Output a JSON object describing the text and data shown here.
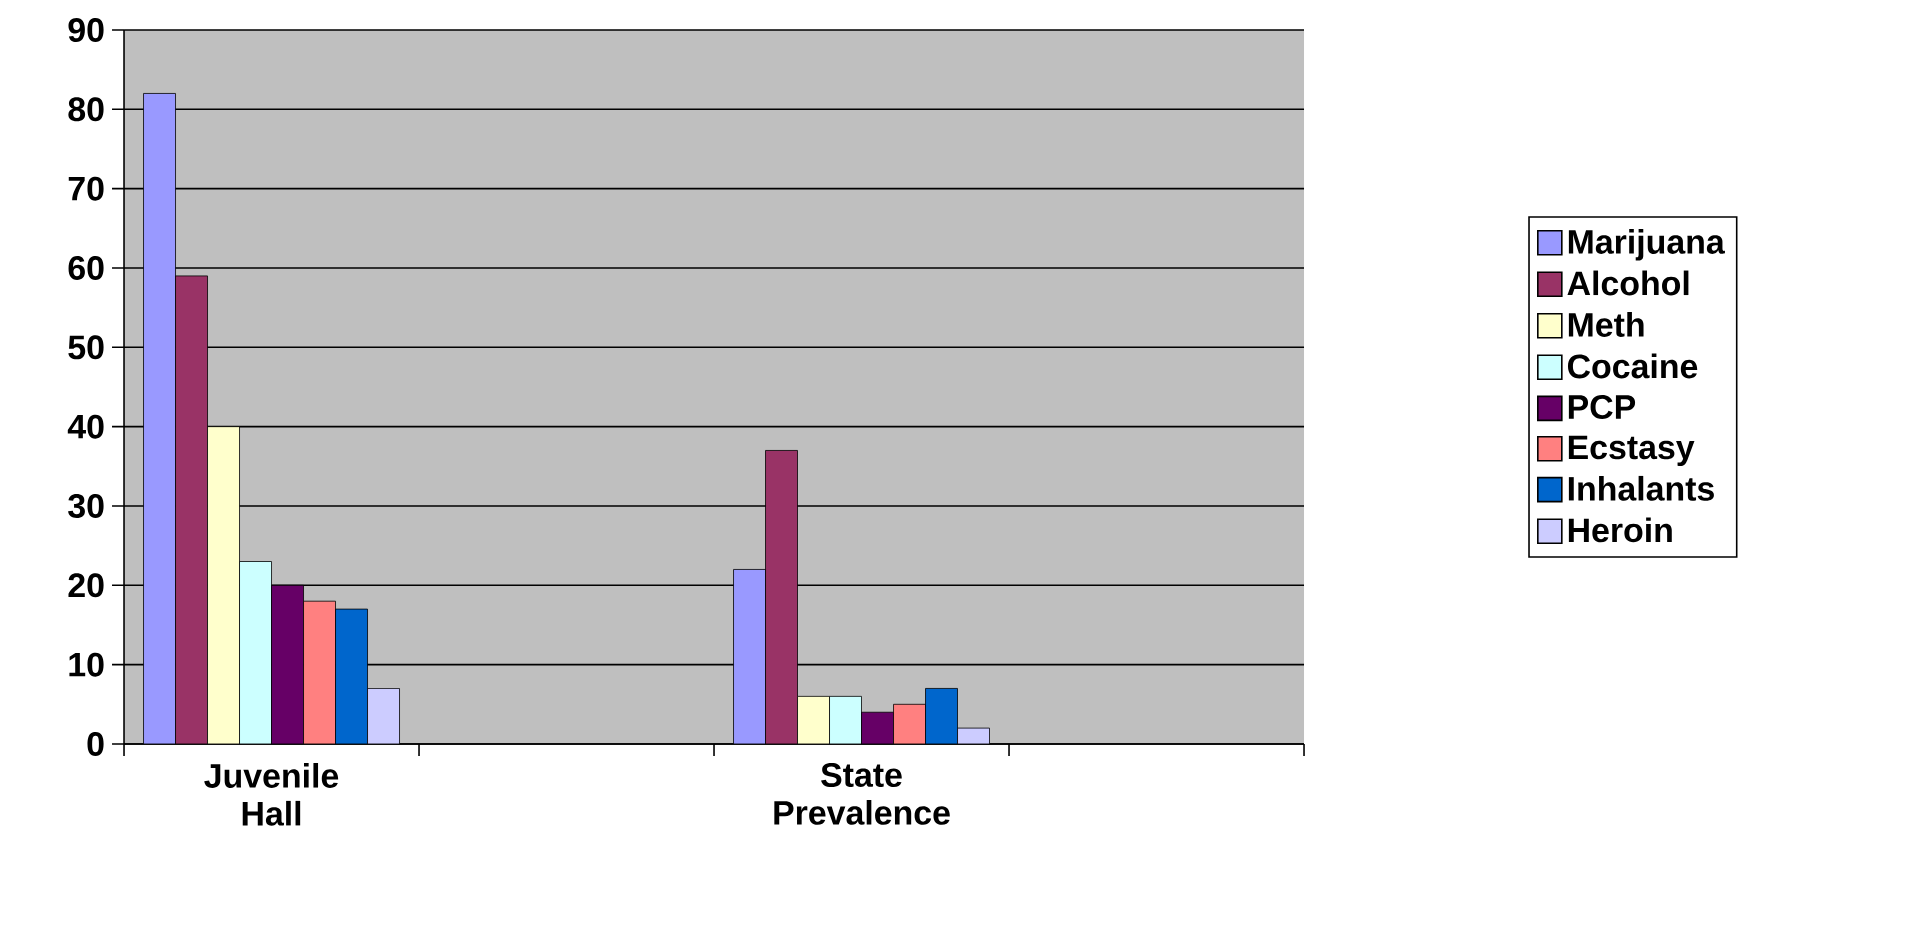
{
  "chart_data": {
    "type": "bar",
    "categories": [
      "Juvenile Hall",
      null,
      "State Prevalence",
      null
    ],
    "series": [
      {
        "name": "Marijuana",
        "color": "#9999ff",
        "values": [
          82,
          null,
          22,
          null
        ]
      },
      {
        "name": "Alcohol",
        "color": "#993366",
        "values": [
          59,
          null,
          37,
          null
        ]
      },
      {
        "name": "Meth",
        "color": "#ffffcc",
        "values": [
          40,
          null,
          6,
          null
        ]
      },
      {
        "name": "Cocaine",
        "color": "#ccffff",
        "values": [
          23,
          null,
          6,
          null
        ]
      },
      {
        "name": "PCP",
        "color": "#660066",
        "values": [
          20,
          null,
          4,
          null
        ]
      },
      {
        "name": "Ecstasy",
        "color": "#ff8080",
        "values": [
          18,
          null,
          5,
          null
        ]
      },
      {
        "name": "Inhalants",
        "color": "#0066cc",
        "values": [
          17,
          null,
          7,
          null
        ]
      },
      {
        "name": "Heroin",
        "color": "#ccccff",
        "values": [
          7,
          null,
          2,
          null
        ]
      }
    ],
    "ylim": [
      0,
      90
    ],
    "yticks": [
      0,
      10,
      20,
      30,
      40,
      50,
      60,
      70,
      80,
      90
    ],
    "grid": "y",
    "legend": "right"
  }
}
